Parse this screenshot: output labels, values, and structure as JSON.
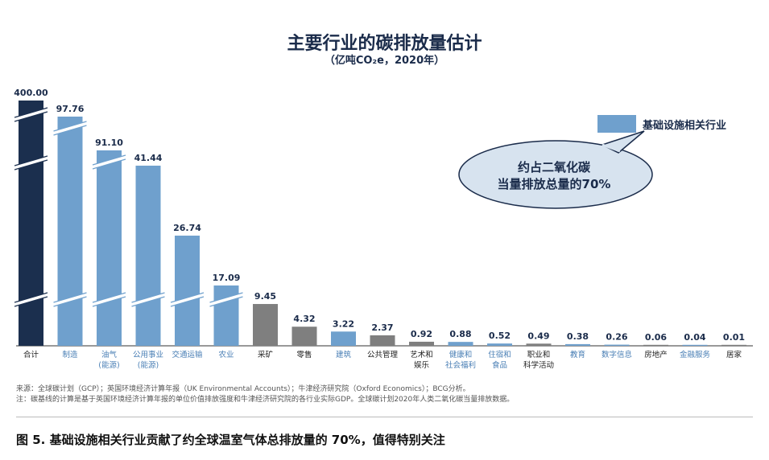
{
  "title": "主要行业的碳排放量估计",
  "subtitle": "（亿吨CO₂e，2020年）",
  "legend": {
    "label": "基础设施相关行业",
    "color": "#6fa0cd"
  },
  "callout": {
    "line1": "约占二氧化碳",
    "line2": "当量排放总量的70%"
  },
  "notes": {
    "source": "来源：全球碳计划（GCP）；英国环境经济计算年报（UK Environmental Accounts）；牛津经济研究院（Oxford Economics）；BCG分析。",
    "note": "注：碳基线的计算是基于英国环境经济计算年报的单位价值排放强度和牛津经济研究院的各行业实际GDP。全球碳计划2020年人类二氧化碳当量排放数据。"
  },
  "caption": "图 5. 基础设施相关行业贡献了约全球温室气体总排放量的 70%，值得特别关注",
  "colors": {
    "total": "#1b2f4e",
    "infrastructure": "#6fa0cd",
    "other": "#7f7f7f"
  },
  "chart_data": {
    "type": "bar",
    "title": "主要行业的碳排放量估计",
    "subtitle": "（亿吨CO₂e，2020年）",
    "axis_break": true,
    "categories": [
      {
        "label": "合计",
        "value": 400.0,
        "value_text": "400.00",
        "group": "total"
      },
      {
        "label": "制造",
        "value": 97.76,
        "value_text": "97.76",
        "group": "infrastructure"
      },
      {
        "label": "油气\n(能源)",
        "value": 91.1,
        "value_text": "91.10",
        "group": "infrastructure"
      },
      {
        "label": "公用事业\n(能源)",
        "value": 41.44,
        "value_text": "41.44",
        "group": "infrastructure"
      },
      {
        "label": "交通运输",
        "value": 26.74,
        "value_text": "26.74",
        "group": "infrastructure"
      },
      {
        "label": "农业",
        "value": 17.09,
        "value_text": "17.09",
        "group": "infrastructure"
      },
      {
        "label": "采矿",
        "value": 9.45,
        "value_text": "9.45",
        "group": "other"
      },
      {
        "label": "零售",
        "value": 4.32,
        "value_text": "4.32",
        "group": "other"
      },
      {
        "label": "建筑",
        "value": 3.22,
        "value_text": "3.22",
        "group": "infrastructure"
      },
      {
        "label": "公共管理",
        "value": 2.37,
        "value_text": "2.37",
        "group": "other"
      },
      {
        "label": "艺术和\n娱乐",
        "value": 0.92,
        "value_text": "0.92",
        "group": "other"
      },
      {
        "label": "健康和\n社会福利",
        "value": 0.88,
        "value_text": "0.88",
        "group": "infrastructure"
      },
      {
        "label": "住宿和\n食品",
        "value": 0.52,
        "value_text": "0.52",
        "group": "infrastructure"
      },
      {
        "label": "职业和\n科学活动",
        "value": 0.49,
        "value_text": "0.49",
        "group": "other"
      },
      {
        "label": "教育",
        "value": 0.38,
        "value_text": "0.38",
        "group": "infrastructure"
      },
      {
        "label": "数字信息",
        "value": 0.26,
        "value_text": "0.26",
        "group": "infrastructure"
      },
      {
        "label": "房地产",
        "value": 0.06,
        "value_text": "0.06",
        "group": "other"
      },
      {
        "label": "金融服务",
        "value": 0.04,
        "value_text": "0.04",
        "group": "infrastructure"
      },
      {
        "label": "居家",
        "value": 0.01,
        "value_text": "0.01",
        "group": "other"
      }
    ]
  }
}
